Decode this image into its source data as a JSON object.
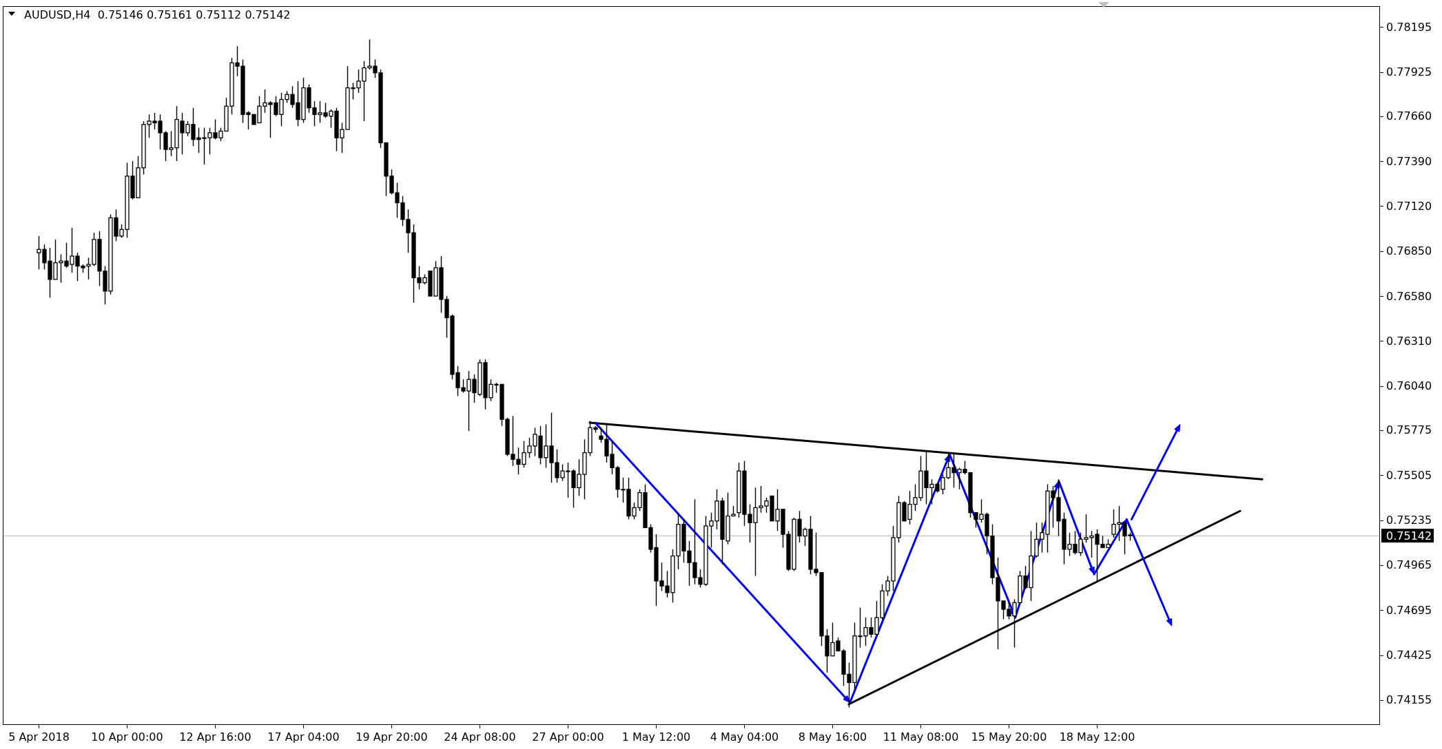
{
  "chart_data": {
    "type": "candlestick",
    "title": "AUDUSD,H4  0.75146 0.75161 0.75112 0.75142",
    "color": "#000000",
    "categories": [
      "5 Apr 2018",
      null,
      null,
      null,
      null,
      null,
      null,
      null,
      null,
      null,
      null,
      null,
      null,
      null,
      null,
      null,
      "10 Apr 00:00",
      null,
      null,
      null,
      null,
      null,
      null,
      null,
      null,
      null,
      null,
      null,
      null,
      null,
      null,
      null,
      "12 Apr 16:00",
      null,
      null,
      null,
      null,
      null,
      null,
      null,
      null,
      null,
      null,
      null,
      null,
      null,
      null,
      null,
      "17 Apr 04:00",
      null,
      null,
      null,
      null,
      null,
      null,
      null,
      null,
      null,
      null,
      null,
      null,
      null,
      null,
      null,
      "19 Apr 20:00",
      null,
      null,
      null,
      null,
      null,
      null,
      null,
      null,
      null,
      null,
      null,
      null,
      null,
      null,
      null,
      "24 Apr 08:00",
      null,
      null,
      null,
      null,
      null,
      null,
      null,
      null,
      null,
      null,
      null,
      null,
      null,
      null,
      null,
      "27 Apr 00:00",
      null,
      null,
      null,
      null,
      null,
      null,
      null,
      null,
      null,
      null,
      null,
      null,
      null,
      null,
      null,
      "1 May 12:00",
      null,
      null,
      null,
      null,
      null,
      null,
      null,
      null,
      null,
      null,
      null,
      null,
      null,
      null,
      null,
      "4 May 04:00",
      null,
      null,
      null,
      null,
      null,
      null,
      null,
      null,
      null,
      null,
      null,
      null,
      null,
      null,
      null,
      "8 May 16:00",
      null,
      null,
      null,
      null,
      null,
      null,
      null,
      null,
      null,
      null,
      null,
      null,
      null,
      null,
      null,
      "11 May 08:00",
      null,
      null,
      null,
      null,
      null,
      null,
      null,
      null,
      null,
      null,
      null,
      null,
      null,
      null,
      null,
      "15 May 20:00",
      null,
      null,
      null,
      null,
      null,
      null,
      null,
      null,
      null,
      null,
      null,
      null,
      null,
      null,
      null,
      "18 May 12:00",
      null,
      null,
      null,
      null,
      null,
      null,
      null,
      null,
      null,
      null,
      null,
      null,
      null,
      null,
      null,
      null,
      null,
      null,
      null,
      null,
      null,
      null,
      null,
      null,
      null,
      null,
      null,
      null,
      null,
      null,
      null,
      null,
      null,
      null,
      null,
      null,
      null,
      null,
      null,
      null,
      null,
      null,
      null,
      null,
      null,
      null,
      null,
      null,
      null,
      null,
      null
    ],
    "ohlc": [
      [
        0.7684,
        0.7694,
        0.7674,
        0.7686
      ],
      [
        0.7686,
        0.7689,
        0.7674,
        0.7678
      ],
      [
        0.7679,
        0.7687,
        0.7657,
        0.7668
      ],
      [
        0.7668,
        0.7692,
        0.7668,
        0.7678
      ],
      [
        0.7678,
        0.7683,
        0.7666,
        0.7679
      ],
      [
        0.7679,
        0.769,
        0.7675,
        0.7676
      ],
      [
        0.7677,
        0.7699,
        0.7672,
        0.7682
      ],
      [
        0.7682,
        0.7684,
        0.7667,
        0.7676
      ],
      [
        0.7676,
        0.7677,
        0.7672,
        0.7675
      ],
      [
        0.7676,
        0.7681,
        0.7668,
        0.7677
      ],
      [
        0.7677,
        0.7696,
        0.7676,
        0.7692
      ],
      [
        0.7692,
        0.7697,
        0.7664,
        0.7673
      ],
      [
        0.7673,
        0.7676,
        0.7653,
        0.7661
      ],
      [
        0.7661,
        0.7707,
        0.7659,
        0.7705
      ],
      [
        0.7705,
        0.771,
        0.7691,
        0.7694
      ],
      [
        0.7694,
        0.7701,
        0.7693,
        0.7698
      ],
      [
        0.7698,
        0.7738,
        0.7693,
        0.773
      ],
      [
        0.773,
        0.7739,
        0.7716,
        0.7717
      ],
      [
        0.7717,
        0.7742,
        0.7717,
        0.7735
      ],
      [
        0.7735,
        0.7763,
        0.7731,
        0.7761
      ],
      [
        0.7761,
        0.7767,
        0.7753,
        0.7763
      ],
      [
        0.7763,
        0.7768,
        0.7758,
        0.7762
      ],
      [
        0.7763,
        0.7767,
        0.7746,
        0.7756
      ],
      [
        0.7756,
        0.7757,
        0.7739,
        0.7746
      ],
      [
        0.7746,
        0.7757,
        0.7742,
        0.7747
      ],
      [
        0.7747,
        0.7772,
        0.7739,
        0.7764
      ],
      [
        0.7763,
        0.7768,
        0.7743,
        0.7756
      ],
      [
        0.7756,
        0.7763,
        0.7754,
        0.7761
      ],
      [
        0.7761,
        0.7771,
        0.7748,
        0.7752
      ],
      [
        0.7753,
        0.7759,
        0.7744,
        0.7752
      ],
      [
        0.7753,
        0.7759,
        0.7737,
        0.7753
      ],
      [
        0.7753,
        0.7759,
        0.7743,
        0.7756
      ],
      [
        0.7756,
        0.7764,
        0.7752,
        0.7753
      ],
      [
        0.7753,
        0.7759,
        0.7751,
        0.7757
      ],
      [
        0.7757,
        0.7777,
        0.7757,
        0.7772
      ],
      [
        0.7772,
        0.7801,
        0.7767,
        0.7798
      ],
      [
        0.7798,
        0.7808,
        0.779,
        0.7796
      ],
      [
        0.7796,
        0.78,
        0.7762,
        0.7767
      ],
      [
        0.7768,
        0.7769,
        0.7758,
        0.7767
      ],
      [
        0.7767,
        0.7767,
        0.7761,
        0.7761
      ],
      [
        0.7762,
        0.7778,
        0.7762,
        0.7772
      ],
      [
        0.7772,
        0.7782,
        0.7768,
        0.7774
      ],
      [
        0.7774,
        0.7775,
        0.7753,
        0.7773
      ],
      [
        0.7774,
        0.7778,
        0.7766,
        0.7767
      ],
      [
        0.7767,
        0.778,
        0.776,
        0.7776
      ],
      [
        0.7776,
        0.7781,
        0.7774,
        0.7779
      ],
      [
        0.7779,
        0.7784,
        0.7771,
        0.7773
      ],
      [
        0.7774,
        0.7787,
        0.776,
        0.7764
      ],
      [
        0.7764,
        0.7789,
        0.7762,
        0.7783
      ],
      [
        0.7783,
        0.7785,
        0.7768,
        0.7771
      ],
      [
        0.7771,
        0.7775,
        0.776,
        0.7767
      ],
      [
        0.7767,
        0.7775,
        0.7762,
        0.7768
      ],
      [
        0.7768,
        0.7774,
        0.7765,
        0.7766
      ],
      [
        0.7766,
        0.777,
        0.7759,
        0.7769
      ],
      [
        0.7769,
        0.7771,
        0.7745,
        0.7753
      ],
      [
        0.7753,
        0.7762,
        0.7744,
        0.7758
      ],
      [
        0.7758,
        0.7796,
        0.7758,
        0.7783
      ],
      [
        0.7783,
        0.7786,
        0.7776,
        0.7783
      ],
      [
        0.7783,
        0.7794,
        0.778,
        0.7787
      ],
      [
        0.7787,
        0.7799,
        0.7763,
        0.7795
      ],
      [
        0.7795,
        0.7812,
        0.7794,
        0.7796
      ],
      [
        0.7796,
        0.78,
        0.7789,
        0.7792
      ],
      [
        0.7792,
        0.7794,
        0.7747,
        0.775
      ],
      [
        0.775,
        0.775,
        0.7718,
        0.773
      ],
      [
        0.773,
        0.7734,
        0.7719,
        0.772
      ],
      [
        0.772,
        0.7726,
        0.7705,
        0.7714
      ],
      [
        0.7714,
        0.7718,
        0.77,
        0.7704
      ],
      [
        0.7704,
        0.771,
        0.7684,
        0.7696
      ],
      [
        0.7696,
        0.7701,
        0.7654,
        0.7669
      ],
      [
        0.7669,
        0.7676,
        0.7662,
        0.7666
      ],
      [
        0.7666,
        0.7671,
        0.7665,
        0.7669
      ],
      [
        0.7673,
        0.7673,
        0.7658,
        0.7658
      ],
      [
        0.7658,
        0.7679,
        0.7658,
        0.7675
      ],
      [
        0.7675,
        0.7682,
        0.7648,
        0.7656
      ],
      [
        0.7656,
        0.7658,
        0.7633,
        0.7645
      ],
      [
        0.7646,
        0.7647,
        0.7608,
        0.7611
      ],
      [
        0.7612,
        0.7616,
        0.7598,
        0.7603
      ],
      [
        0.7603,
        0.7608,
        0.76,
        0.7601
      ],
      [
        0.7601,
        0.7613,
        0.7577,
        0.7608
      ],
      [
        0.7608,
        0.7611,
        0.7594,
        0.76
      ],
      [
        0.7599,
        0.762,
        0.7598,
        0.7618
      ],
      [
        0.7618,
        0.762,
        0.759,
        0.7597
      ],
      [
        0.7597,
        0.7608,
        0.7595,
        0.7605
      ],
      [
        0.7605,
        0.7606,
        0.76,
        0.7605
      ],
      [
        0.7605,
        0.7605,
        0.758,
        0.7584
      ],
      [
        0.7584,
        0.7585,
        0.7562,
        0.7563
      ],
      [
        0.7563,
        0.7586,
        0.7556,
        0.756
      ],
      [
        0.756,
        0.7567,
        0.7551,
        0.7557
      ],
      [
        0.7557,
        0.7571,
        0.7555,
        0.7564
      ],
      [
        0.7564,
        0.7573,
        0.7561,
        0.7568
      ],
      [
        0.7568,
        0.7579,
        0.7562,
        0.7575
      ],
      [
        0.7574,
        0.758,
        0.7557,
        0.7561
      ],
      [
        0.7561,
        0.7581,
        0.7555,
        0.7568
      ],
      [
        0.7568,
        0.7588,
        0.7546,
        0.7558
      ],
      [
        0.7558,
        0.7566,
        0.7546,
        0.7549
      ],
      [
        0.7549,
        0.7557,
        0.7547,
        0.7553
      ],
      [
        0.7553,
        0.7558,
        0.7537,
        0.7553
      ],
      [
        0.7553,
        0.7554,
        0.7531,
        0.7543
      ],
      [
        0.7543,
        0.756,
        0.7538,
        0.7551
      ],
      [
        0.7551,
        0.7572,
        0.7536,
        0.7564
      ],
      [
        0.7564,
        0.7583,
        0.7562,
        0.7579
      ],
      [
        0.7579,
        0.758,
        0.7576,
        0.7578
      ],
      [
        0.7574,
        0.7579,
        0.757,
        0.7572
      ],
      [
        0.7572,
        0.7581,
        0.7558,
        0.7562
      ],
      [
        0.7563,
        0.7571,
        0.7551,
        0.7555
      ],
      [
        0.7555,
        0.7556,
        0.7537,
        0.7542
      ],
      [
        0.7542,
        0.7549,
        0.7534,
        0.7542
      ],
      [
        0.7542,
        0.7549,
        0.7524,
        0.7526
      ],
      [
        0.7526,
        0.7534,
        0.7524,
        0.7531
      ],
      [
        0.7531,
        0.7542,
        0.7529,
        0.754
      ],
      [
        0.754,
        0.7545,
        0.7519,
        0.7519
      ],
      [
        0.7519,
        0.7521,
        0.7504,
        0.7506
      ],
      [
        0.7507,
        0.7515,
        0.7472,
        0.7487
      ],
      [
        0.7487,
        0.7498,
        0.7481,
        0.7484
      ],
      [
        0.7484,
        0.7493,
        0.7477,
        0.748
      ],
      [
        0.748,
        0.7506,
        0.7474,
        0.7502
      ],
      [
        0.7502,
        0.7527,
        0.7494,
        0.7521
      ],
      [
        0.7521,
        0.7524,
        0.7498,
        0.7505
      ],
      [
        0.7505,
        0.7511,
        0.7484,
        0.7498
      ],
      [
        0.7498,
        0.7536,
        0.7485,
        0.7489
      ],
      [
        0.7489,
        0.7494,
        0.7483,
        0.7485
      ],
      [
        0.7485,
        0.7526,
        0.7484,
        0.752
      ],
      [
        0.752,
        0.7528,
        0.7507,
        0.7523
      ],
      [
        0.7523,
        0.7542,
        0.7518,
        0.7535
      ],
      [
        0.7535,
        0.7537,
        0.7497,
        0.7512
      ],
      [
        0.7511,
        0.754,
        0.7509,
        0.7526
      ],
      [
        0.7526,
        0.7532,
        0.7526,
        0.7527
      ],
      [
        0.7528,
        0.7558,
        0.7525,
        0.7553
      ],
      [
        0.7553,
        0.7559,
        0.752,
        0.7527
      ],
      [
        0.7527,
        0.7533,
        0.751,
        0.7522
      ],
      [
        0.7522,
        0.7543,
        0.749,
        0.7531
      ],
      [
        0.7531,
        0.7544,
        0.7528,
        0.7532
      ],
      [
        0.7532,
        0.7537,
        0.7528,
        0.7535
      ],
      [
        0.7538,
        0.7538,
        0.7523,
        0.7523
      ],
      [
        0.7523,
        0.7542,
        0.7517,
        0.753
      ],
      [
        0.753,
        0.753,
        0.7507,
        0.7515
      ],
      [
        0.7515,
        0.7517,
        0.7493,
        0.7494
      ],
      [
        0.7494,
        0.7525,
        0.7493,
        0.7524
      ],
      [
        0.7524,
        0.7529,
        0.751,
        0.7514
      ],
      [
        0.7514,
        0.7519,
        0.7508,
        0.7518
      ],
      [
        0.7518,
        0.7526,
        0.7491,
        0.7494
      ],
      [
        0.7494,
        0.7516,
        0.749,
        0.7492
      ],
      [
        0.7492,
        0.7492,
        0.7448,
        0.7454
      ],
      [
        0.7454,
        0.7458,
        0.7432,
        0.7442
      ],
      [
        0.7442,
        0.7462,
        0.7442,
        0.745
      ],
      [
        0.7451,
        0.7453,
        0.7445,
        0.7445
      ],
      [
        0.7445,
        0.7446,
        0.7424,
        0.7431
      ],
      [
        0.7431,
        0.7438,
        0.7411,
        0.7426
      ],
      [
        0.7426,
        0.7462,
        0.7422,
        0.7454
      ],
      [
        0.7454,
        0.7471,
        0.7447,
        0.7454
      ],
      [
        0.7454,
        0.7465,
        0.7448,
        0.7459
      ],
      [
        0.7459,
        0.7465,
        0.7453,
        0.7455
      ],
      [
        0.7455,
        0.7475,
        0.7455,
        0.7465
      ],
      [
        0.7465,
        0.7485,
        0.7464,
        0.7481
      ],
      [
        0.7481,
        0.749,
        0.7478,
        0.7487
      ],
      [
        0.7487,
        0.752,
        0.7481,
        0.7513
      ],
      [
        0.7513,
        0.7538,
        0.751,
        0.7534
      ],
      [
        0.7534,
        0.7535,
        0.7523,
        0.7523
      ],
      [
        0.7524,
        0.7541,
        0.7521,
        0.7533
      ],
      [
        0.7533,
        0.7545,
        0.7529,
        0.7537
      ],
      [
        0.7537,
        0.7562,
        0.7535,
        0.7553
      ],
      [
        0.7553,
        0.7565,
        0.7533,
        0.7543
      ],
      [
        0.7543,
        0.7548,
        0.7533,
        0.7545
      ],
      [
        0.7545,
        0.7546,
        0.754,
        0.7541
      ],
      [
        0.7542,
        0.7551,
        0.7539,
        0.7549
      ],
      [
        0.7549,
        0.7563,
        0.7548,
        0.7555
      ],
      [
        0.7555,
        0.7563,
        0.7543,
        0.7552
      ],
      [
        0.7552,
        0.7555,
        0.7542,
        0.7554
      ],
      [
        0.7554,
        0.7559,
        0.7551,
        0.7552
      ],
      [
        0.7552,
        0.7552,
        0.7525,
        0.7528
      ],
      [
        0.7528,
        0.7528,
        0.7519,
        0.7524
      ],
      [
        0.7524,
        0.7536,
        0.7522,
        0.7527
      ],
      [
        0.7527,
        0.7528,
        0.7503,
        0.7514
      ],
      [
        0.7514,
        0.7521,
        0.7485,
        0.7489
      ],
      [
        0.7489,
        0.7501,
        0.7446,
        0.7475
      ],
      [
        0.7475,
        0.7475,
        0.7464,
        0.747
      ],
      [
        0.747,
        0.7474,
        0.7464,
        0.7466
      ],
      [
        0.7466,
        0.7476,
        0.7447,
        0.7474
      ],
      [
        0.7474,
        0.7493,
        0.7473,
        0.749
      ],
      [
        0.749,
        0.7496,
        0.7482,
        0.7483
      ],
      [
        0.7483,
        0.7517,
        0.7475,
        0.7502
      ],
      [
        0.7502,
        0.7522,
        0.7501,
        0.7512
      ],
      [
        0.7512,
        0.7522,
        0.7504,
        0.7516
      ],
      [
        0.7515,
        0.7545,
        0.7504,
        0.7541
      ],
      [
        0.7541,
        0.7544,
        0.7519,
        0.7537
      ],
      [
        0.7537,
        0.7548,
        0.7514,
        0.7523
      ],
      [
        0.7524,
        0.7528,
        0.7497,
        0.7506
      ],
      [
        0.7506,
        0.7516,
        0.7502,
        0.7509
      ],
      [
        0.7509,
        0.7517,
        0.7503,
        0.7504
      ],
      [
        0.7504,
        0.7516,
        0.7502,
        0.7512
      ],
      [
        0.7512,
        0.7527,
        0.751,
        0.7513
      ],
      [
        0.7513,
        0.7517,
        0.7501,
        0.7514
      ],
      [
        0.7515,
        0.7518,
        0.7487,
        0.7509
      ],
      [
        0.7509,
        0.7514,
        0.7507,
        0.7507
      ],
      [
        0.7507,
        0.7512,
        0.7507,
        0.7509
      ],
      [
        0.7515,
        0.753,
        0.7513,
        0.7521
      ],
      [
        0.7521,
        0.7532,
        0.7511,
        0.7522
      ],
      [
        0.7522,
        0.7522,
        0.7503,
        0.7514
      ],
      [
        0.75146,
        0.75161,
        0.75112,
        0.75142
      ],
      null,
      null,
      null,
      null,
      null,
      null,
      null,
      null,
      null,
      null,
      null,
      null,
      null,
      null,
      null,
      null,
      null,
      null,
      null,
      null,
      null,
      null,
      null,
      null,
      null,
      null,
      null,
      null,
      null,
      null,
      null,
      null,
      null,
      null,
      null,
      null,
      null,
      null,
      null,
      null,
      null,
      null,
      null,
      null,
      null
    ],
    "series": [
      {
        "type": "line",
        "color": "#000000",
        "values": [
          null,
          null,
          null,
          null,
          null,
          null,
          null,
          null,
          null,
          null,
          null,
          null,
          null,
          null,
          null,
          null,
          null,
          null,
          null,
          null,
          null,
          null,
          null,
          null,
          null,
          null,
          null,
          null,
          null,
          null,
          null,
          null,
          null,
          null,
          null,
          null,
          null,
          null,
          null,
          null,
          null,
          null,
          null,
          null,
          null,
          null,
          null,
          null,
          null,
          null,
          null,
          null,
          null,
          null,
          null,
          null,
          null,
          null,
          null,
          null,
          null,
          null,
          null,
          null,
          null,
          null,
          null,
          null,
          null,
          null,
          null,
          null,
          null,
          null,
          null,
          null,
          null,
          null,
          null,
          null,
          null,
          null,
          null,
          null,
          null,
          null,
          null,
          null,
          null,
          null,
          null,
          null,
          null,
          null,
          null,
          null,
          null,
          null,
          null,
          null,
          0.7582,
          null,
          null,
          null,
          null,
          null,
          null,
          null,
          null,
          null,
          null,
          null,
          null,
          null,
          null,
          null,
          null,
          null,
          null,
          null,
          null,
          null,
          null,
          null,
          null,
          null,
          null,
          null,
          null,
          null,
          null,
          null,
          null,
          null,
          null,
          null,
          null,
          null,
          null,
          null,
          null,
          null,
          null,
          null,
          null,
          null,
          null,
          null,
          null,
          null,
          null,
          null,
          null,
          null,
          null,
          null,
          null,
          null,
          null,
          null,
          null,
          null,
          null,
          null,
          null,
          null,
          null,
          null,
          null,
          null,
          null,
          null,
          null,
          null,
          null,
          null,
          null,
          null,
          null,
          null,
          null,
          null,
          null,
          null,
          null,
          null,
          null,
          null,
          null,
          null,
          null,
          null,
          null,
          null,
          null,
          null,
          null,
          null,
          null,
          null,
          null,
          null,
          null,
          null,
          null,
          null,
          null,
          null,
          null,
          null,
          null,
          null,
          null,
          null,
          null,
          null,
          null,
          null,
          null,
          null,
          null,
          null,
          0.7548,
          null,
          null,
          null,
          null,
          null,
          null,
          null,
          null,
          null,
          null,
          null,
          null,
          null,
          null,
          null,
          null,
          null,
          null,
          null,
          null,
          null
        ]
      },
      {
        "type": "line",
        "color": "#000000",
        "values": [
          null,
          null,
          null,
          null,
          null,
          null,
          null,
          null,
          null,
          null,
          null,
          null,
          null,
          null,
          null,
          null,
          null,
          null,
          null,
          null,
          null,
          null,
          null,
          null,
          null,
          null,
          null,
          null,
          null,
          null,
          null,
          null,
          null,
          null,
          null,
          null,
          null,
          null,
          null,
          null,
          null,
          null,
          null,
          null,
          null,
          null,
          null,
          null,
          null,
          null,
          null,
          null,
          null,
          null,
          null,
          null,
          null,
          null,
          null,
          null,
          null,
          null,
          null,
          null,
          null,
          null,
          null,
          null,
          null,
          null,
          null,
          null,
          null,
          null,
          null,
          null,
          null,
          null,
          null,
          null,
          null,
          null,
          null,
          null,
          null,
          null,
          null,
          null,
          null,
          null,
          null,
          null,
          null,
          null,
          null,
          null,
          null,
          null,
          null,
          null,
          null,
          null,
          null,
          null,
          null,
          null,
          null,
          null,
          null,
          null,
          null,
          null,
          null,
          null,
          null,
          null,
          null,
          null,
          null,
          null,
          null,
          null,
          null,
          null,
          null,
          null,
          null,
          null,
          null,
          null,
          null,
          null,
          null,
          null,
          null,
          null,
          null,
          null,
          null,
          null,
          null,
          null,
          null,
          null,
          null,
          null,
          null,
          0.7413,
          null,
          null,
          null,
          null,
          null,
          null,
          null,
          null,
          null,
          null,
          null,
          null,
          null,
          null,
          null,
          null,
          null,
          null,
          null,
          null,
          null,
          null,
          null,
          null,
          null,
          null,
          null,
          null,
          null,
          null,
          null,
          null,
          null,
          null,
          null,
          null,
          null,
          null,
          null,
          null,
          null,
          null,
          null,
          null,
          null,
          null,
          null,
          null,
          null,
          null,
          null,
          null,
          null,
          null,
          null,
          null,
          null,
          null,
          null,
          null,
          null,
          null,
          null,
          null,
          null,
          null,
          null,
          null,
          null,
          null,
          0.7529,
          null,
          null,
          null,
          null,
          null,
          null,
          null,
          null,
          null,
          null,
          null,
          null,
          null,
          null,
          null,
          null,
          null,
          null,
          null,
          null,
          null,
          null,
          null,
          null,
          null
        ]
      }
    ],
    "ylim": [
      0.7401,
      0.7832
    ],
    "yticks": [
      {
        "value": 0.78195,
        "label": "0.78195"
      },
      {
        "value": 0.77925,
        "label": "0.77925"
      },
      {
        "value": 0.7766,
        "label": "0.77660"
      },
      {
        "value": 0.7739,
        "label": "0.77390"
      },
      {
        "value": 0.7712,
        "label": "0.77120"
      },
      {
        "value": 0.7685,
        "label": "0.76850"
      },
      {
        "value": 0.7658,
        "label": "0.76580"
      },
      {
        "value": 0.7631,
        "label": "0.76310"
      },
      {
        "value": 0.7604,
        "label": "0.76040"
      },
      {
        "value": 0.75775,
        "label": "0.75775"
      },
      {
        "value": 0.75505,
        "label": "0.75505"
      },
      {
        "value": 0.75235,
        "label": "0.75235"
      },
      {
        "value": 0.74965,
        "label": "0.74965"
      },
      {
        "value": 0.74695,
        "label": "0.74695"
      },
      {
        "value": 0.74425,
        "label": "0.74425"
      },
      {
        "value": 0.74155,
        "label": "0.74155"
      }
    ],
    "ref_lines": [
      {
        "axis": "y",
        "value": 0.75142,
        "label": "0.75142",
        "color": "#c0c0c0"
      }
    ]
  }
}
